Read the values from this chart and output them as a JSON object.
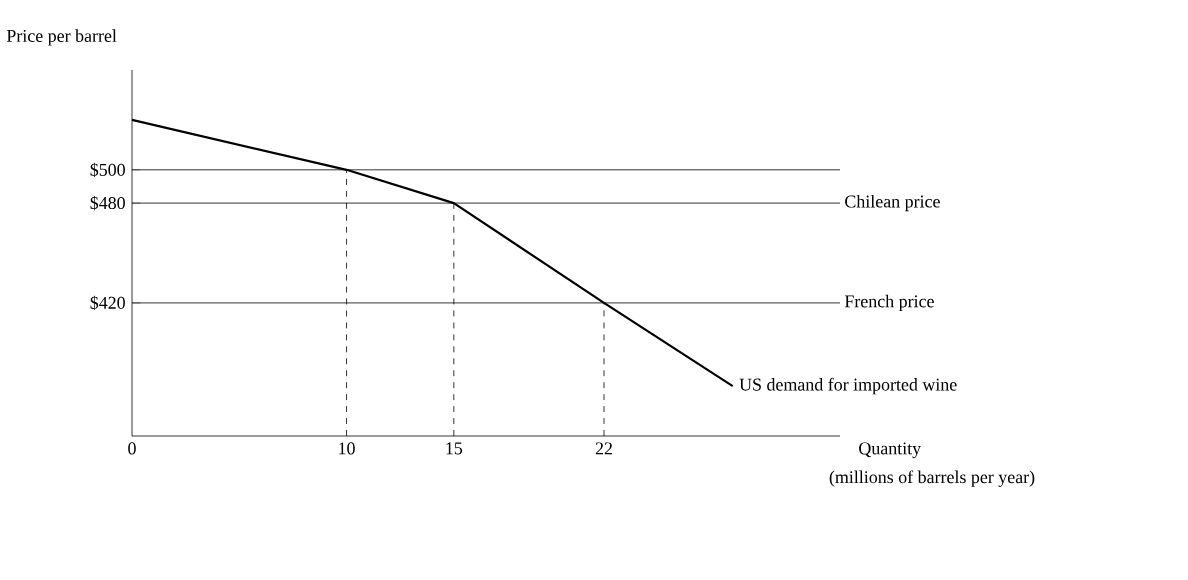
{
  "chart_data": {
    "type": "line",
    "ylabel": "Price per barrel",
    "xlabel": "Quantity",
    "annotations": [
      "(millions of barrels per year)"
    ],
    "x": [
      0,
      10,
      15,
      22,
      28
    ],
    "series": [
      {
        "name": "US demand for imported wine",
        "color": "#000000",
        "values": [
          530,
          500,
          480,
          420,
          370
        ]
      }
    ],
    "xlim": [
      0,
      33
    ],
    "ylim": [
      340,
      560
    ],
    "xticks": [
      0,
      10,
      15,
      22
    ],
    "yticks": [
      {
        "value": 420,
        "label": "$420"
      },
      {
        "value": 480,
        "label": "$480"
      },
      {
        "value": 500,
        "label": "$500"
      }
    ],
    "ref_lines": [
      {
        "axis": "y",
        "value": 500,
        "label": null,
        "color": "#000000"
      },
      {
        "axis": "y",
        "value": 480,
        "label": "Chilean price",
        "color": "#000000"
      },
      {
        "axis": "y",
        "value": 420,
        "label": "French price",
        "color": "#000000"
      },
      {
        "axis": "x",
        "value": 10,
        "label": null,
        "line_style": "dashed",
        "color": "#000000"
      },
      {
        "axis": "x",
        "value": 15,
        "label": null,
        "line_style": "dashed",
        "color": "#000000"
      },
      {
        "axis": "x",
        "value": 22,
        "label": null,
        "line_style": "dashed",
        "color": "#000000"
      }
    ],
    "grid": false,
    "legend": false,
    "marker": "none",
    "line_style": "solid"
  }
}
